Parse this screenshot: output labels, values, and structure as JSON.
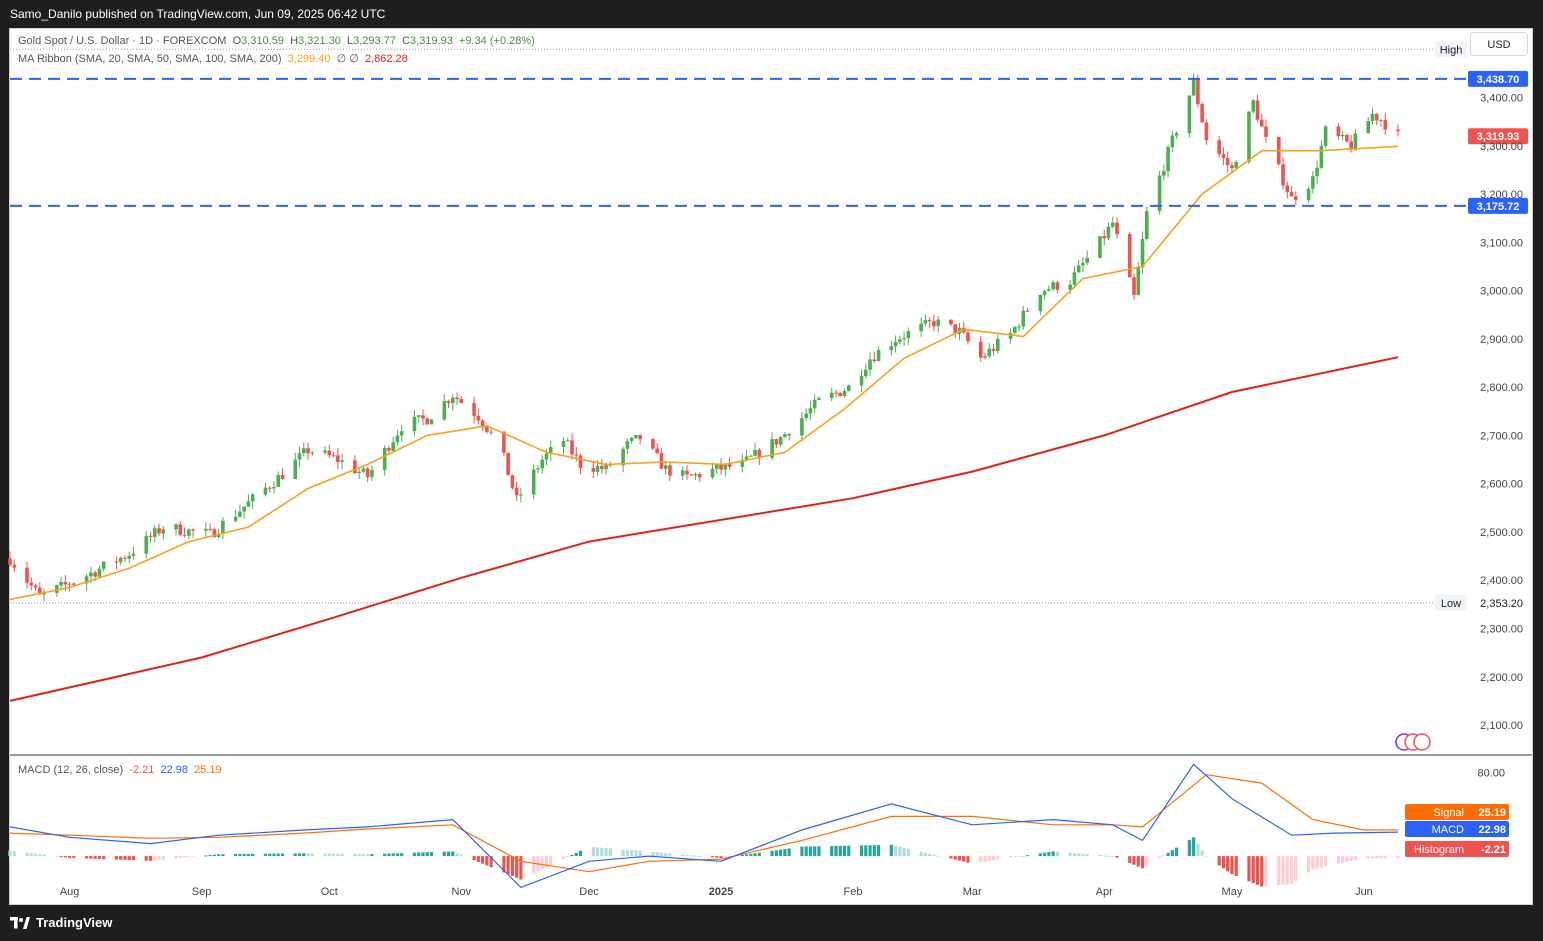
{
  "header": {
    "publish_line": "Samo_Danilo published on TradingView.com, Jun 09, 2025 06:42 UTC"
  },
  "legend": {
    "symbol": "Gold Spot / U.S. Dollar · 1D · FOREXCOM",
    "open_label": "O",
    "open": "3,310.59",
    "high_label": "H",
    "high": "3,321.30",
    "low_label": "L",
    "low": "3,293.77",
    "close_label": "C",
    "close": "3,319.93",
    "change": "+9.34 (+0.28%)",
    "ma_label": "MA Ribbon (SMA, 20, SMA, 50, SMA, 100, SMA, 200)",
    "ma_value_1": "3,299.40",
    "ma_sep": "∅ ∅",
    "ma_value_2": "2,862.28",
    "macd_label": "MACD (12, 26, close)",
    "macd_hist": "-2.21",
    "macd_macd": "22.98",
    "macd_signal": "25.19"
  },
  "currency_button": "USD",
  "brand": "TradingView",
  "colors": {
    "up": "#26a69a",
    "up_candle": "#4caf50",
    "down": "#ef5350",
    "ma20": "#f7a21b",
    "ma200": "#e0221b",
    "levels": "#2962ff",
    "macd": "#2962ff",
    "signal": "#ff6d00"
  },
  "chart_data": [
    {
      "type": "candlestick",
      "title": "Gold Spot / U.S. Dollar · 1D · FOREXCOM",
      "ylim": [
        2040,
        3540
      ],
      "y_ticks": [
        "2,100.00",
        "2,200.00",
        "2,300.00",
        "2,400.00",
        "2,500.00",
        "2,600.00",
        "2,700.00",
        "2,800.00",
        "2,900.00",
        "3,000.00",
        "3,100.00",
        "3,200.00",
        "3,300.00",
        "3,400.00"
      ],
      "y_tick_values": [
        2100,
        2200,
        2300,
        2400,
        2500,
        2600,
        2700,
        2800,
        2900,
        3000,
        3100,
        3200,
        3300,
        3400
      ],
      "x_ticks": [
        "Aug",
        "Sep",
        "Oct",
        "Nov",
        "Dec",
        "2025",
        "Feb",
        "Mar",
        "Apr",
        "May",
        "Jun"
      ],
      "x_tick_dates": [
        "2024-08-01",
        "2024-09-01",
        "2024-10-01",
        "2024-11-01",
        "2024-12-01",
        "2025-01-01",
        "2025-02-01",
        "2025-03-01",
        "2025-04-01",
        "2025-05-01",
        "2025-06-01"
      ],
      "date_range": [
        "2024-07-18",
        "2025-06-09"
      ],
      "close_path": [
        [
          "2024-07-18",
          2445
        ],
        [
          "2024-07-25",
          2365
        ],
        [
          "2024-08-05",
          2410
        ],
        [
          "2024-08-15",
          2455
        ],
        [
          "2024-08-23",
          2510
        ],
        [
          "2024-09-03",
          2495
        ],
        [
          "2024-09-12",
          2560
        ],
        [
          "2024-09-20",
          2620
        ],
        [
          "2024-09-26",
          2670
        ],
        [
          "2024-10-03",
          2650
        ],
        [
          "2024-10-10",
          2615
        ],
        [
          "2024-10-18",
          2720
        ],
        [
          "2024-10-24",
          2735
        ],
        [
          "2024-10-30",
          2785
        ],
        [
          "2024-11-05",
          2740
        ],
        [
          "2024-11-10",
          2680
        ],
        [
          "2024-11-14",
          2565
        ],
        [
          "2024-11-20",
          2650
        ],
        [
          "2024-11-25",
          2690
        ],
        [
          "2024-11-29",
          2640
        ],
        [
          "2024-12-05",
          2630
        ],
        [
          "2024-12-10",
          2680
        ],
        [
          "2024-12-13",
          2695
        ],
        [
          "2024-12-19",
          2630
        ],
        [
          "2024-12-24",
          2612
        ],
        [
          "2024-12-31",
          2630
        ],
        [
          "2025-01-06",
          2640
        ],
        [
          "2025-01-15",
          2695
        ],
        [
          "2025-01-24",
          2770
        ],
        [
          "2025-01-31",
          2800
        ],
        [
          "2025-02-05",
          2860
        ],
        [
          "2025-02-11",
          2900
        ],
        [
          "2025-02-20",
          2935
        ],
        [
          "2025-02-26",
          2915
        ],
        [
          "2025-03-03",
          2860
        ],
        [
          "2025-03-10",
          2910
        ],
        [
          "2025-03-17",
          3000
        ],
        [
          "2025-03-24",
          3020
        ],
        [
          "2025-03-31",
          3100
        ],
        [
          "2025-04-03",
          3140
        ],
        [
          "2025-04-08",
          2985
        ],
        [
          "2025-04-11",
          3160
        ],
        [
          "2025-04-17",
          3310
        ],
        [
          "2025-04-22",
          3430
        ],
        [
          "2025-04-25",
          3315
        ],
        [
          "2025-05-01",
          3250
        ],
        [
          "2025-05-06",
          3390
        ],
        [
          "2025-05-09",
          3310
        ],
        [
          "2025-05-15",
          3190
        ],
        [
          "2025-05-20",
          3230
        ],
        [
          "2025-05-23",
          3330
        ],
        [
          "2025-05-29",
          3300
        ],
        [
          "2025-06-03",
          3365
        ],
        [
          "2025-06-05",
          3355
        ],
        [
          "2025-06-09",
          3320
        ]
      ],
      "high": {
        "label": "High",
        "value": "3,500.10"
      },
      "low": {
        "label": "Low",
        "value": "2,353.20"
      },
      "levels": [
        {
          "value": 3438.7,
          "label": "3,438.70"
        },
        {
          "value": 3175.72,
          "label": "3,175.72"
        }
      ],
      "last_price": {
        "value": 3319.93,
        "label": "3,319.93"
      },
      "ma20_path": [
        [
          "2024-07-18",
          2360
        ],
        [
          "2024-08-01",
          2385
        ],
        [
          "2024-08-15",
          2425
        ],
        [
          "2024-08-29",
          2480
        ],
        [
          "2024-09-12",
          2510
        ],
        [
          "2024-09-26",
          2590
        ],
        [
          "2024-10-10",
          2640
        ],
        [
          "2024-10-24",
          2700
        ],
        [
          "2024-11-07",
          2720
        ],
        [
          "2024-11-21",
          2665
        ],
        [
          "2024-12-05",
          2640
        ],
        [
          "2024-12-19",
          2645
        ],
        [
          "2025-01-02",
          2640
        ],
        [
          "2025-01-16",
          2665
        ],
        [
          "2025-01-30",
          2755
        ],
        [
          "2025-02-13",
          2860
        ],
        [
          "2025-02-27",
          2920
        ],
        [
          "2025-03-13",
          2905
        ],
        [
          "2025-03-27",
          3025
        ],
        [
          "2025-04-10",
          3050
        ],
        [
          "2025-04-24",
          3200
        ],
        [
          "2025-05-08",
          3290
        ],
        [
          "2025-05-22",
          3290
        ],
        [
          "2025-06-09",
          3299
        ]
      ],
      "ma200_path": [
        [
          "2024-07-18",
          2150
        ],
        [
          "2024-09-01",
          2240
        ],
        [
          "2024-10-01",
          2320
        ],
        [
          "2024-11-01",
          2405
        ],
        [
          "2024-12-01",
          2480
        ],
        [
          "2025-01-01",
          2525
        ],
        [
          "2025-02-01",
          2570
        ],
        [
          "2025-03-01",
          2625
        ],
        [
          "2025-04-01",
          2700
        ],
        [
          "2025-05-01",
          2790
        ],
        [
          "2025-06-09",
          2862
        ]
      ]
    },
    {
      "type": "line",
      "title": "MACD (12, 26, close)",
      "ylim": [
        -45,
        95
      ],
      "y_ticks": [
        "80.00"
      ],
      "y_tick_values": [
        80
      ],
      "series": [
        {
          "name": "MACD",
          "value_label": "22.98",
          "points": [
            [
              "2024-07-18",
              28
            ],
            [
              "2024-08-01",
              18
            ],
            [
              "2024-08-20",
              12
            ],
            [
              "2024-09-05",
              20
            ],
            [
              "2024-09-25",
              25
            ],
            [
              "2024-10-10",
              28
            ],
            [
              "2024-10-30",
              35
            ],
            [
              "2024-11-15",
              -30
            ],
            [
              "2024-12-01",
              -5
            ],
            [
              "2024-12-15",
              0
            ],
            [
              "2025-01-01",
              -5
            ],
            [
              "2025-01-20",
              25
            ],
            [
              "2025-02-10",
              50
            ],
            [
              "2025-03-01",
              30
            ],
            [
              "2025-03-20",
              35
            ],
            [
              "2025-04-03",
              30
            ],
            [
              "2025-04-10",
              15
            ],
            [
              "2025-04-22",
              88
            ],
            [
              "2025-05-01",
              55
            ],
            [
              "2025-05-15",
              20
            ],
            [
              "2025-05-25",
              22
            ],
            [
              "2025-06-09",
              22.98
            ]
          ]
        },
        {
          "name": "Signal",
          "value_label": "25.19",
          "points": [
            [
              "2024-07-18",
              22
            ],
            [
              "2024-08-01",
              20
            ],
            [
              "2024-08-20",
              17
            ],
            [
              "2024-09-05",
              18
            ],
            [
              "2024-09-25",
              22
            ],
            [
              "2024-10-10",
              26
            ],
            [
              "2024-10-30",
              30
            ],
            [
              "2024-11-15",
              -5
            ],
            [
              "2024-12-01",
              -15
            ],
            [
              "2024-12-15",
              -5
            ],
            [
              "2025-01-01",
              -3
            ],
            [
              "2025-01-20",
              15
            ],
            [
              "2025-02-10",
              38
            ],
            [
              "2025-03-01",
              38
            ],
            [
              "2025-03-20",
              30
            ],
            [
              "2025-04-03",
              30
            ],
            [
              "2025-04-10",
              28
            ],
            [
              "2025-04-25",
              78
            ],
            [
              "2025-05-08",
              70
            ],
            [
              "2025-05-20",
              35
            ],
            [
              "2025-06-01",
              25
            ],
            [
              "2025-06-09",
              25.19
            ]
          ]
        },
        {
          "name": "Histogram",
          "value_label": "-2.21"
        }
      ]
    }
  ]
}
